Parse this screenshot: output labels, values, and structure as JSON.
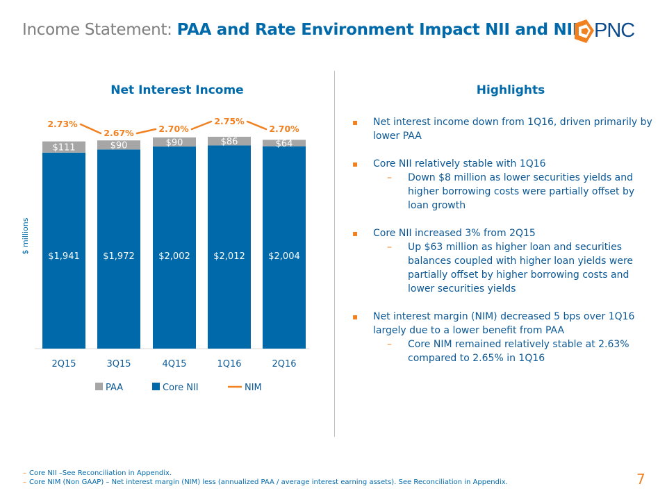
{
  "header": {
    "title_prefix": "Income Statement: ",
    "title_bold": "PAA and Rate Environment Impact NII and NIM",
    "logo_text": "PNC"
  },
  "chart_title": "Net Interest Income",
  "highlights_title": "Highlights",
  "chart_data": {
    "type": "bar",
    "stacked": true,
    "title": "Net Interest Income",
    "ylabel": "$ millions",
    "categories": [
      "2Q15",
      "3Q15",
      "4Q15",
      "1Q16",
      "2Q16"
    ],
    "series": [
      {
        "name": "Core NII",
        "color": "#0069aa",
        "values": [
          1941,
          1972,
          2002,
          2012,
          2004
        ],
        "labels": [
          "$1,941",
          "$1,972",
          "$2,002",
          "$2,012",
          "$2,004"
        ]
      },
      {
        "name": "PAA",
        "color": "#a6a6a6",
        "values": [
          111,
          90,
          90,
          86,
          64
        ],
        "labels": [
          "$111",
          "$90",
          "$90",
          "$86",
          "$64"
        ]
      }
    ],
    "line": {
      "name": "NIM",
      "color": "#f08020",
      "values": [
        2.73,
        2.67,
        2.7,
        2.75,
        2.7
      ],
      "labels": [
        "2.73%",
        "2.67%",
        "2.70%",
        "2.75%",
        "2.70%"
      ]
    },
    "legend": [
      {
        "name": "PAA",
        "kind": "box",
        "color": "#a6a6a6"
      },
      {
        "name": "Core NII",
        "kind": "box",
        "color": "#0069aa"
      },
      {
        "name": "NIM",
        "kind": "line",
        "color": "#f08020"
      }
    ],
    "legend_position": "bottom"
  },
  "highlights": [
    {
      "level": 1,
      "text": "Net interest income down from 1Q16, driven primarily by lower PAA"
    },
    {
      "level": 1,
      "text": "Core NII relatively stable with 1Q16"
    },
    {
      "level": 2,
      "text": "Down $8 million as lower securities yields and higher borrowing costs were partially offset by loan growth"
    },
    {
      "level": 1,
      "text": "Core NII increased 3% from 2Q15"
    },
    {
      "level": 2,
      "text": "Up $63 million as higher loan and securities balances coupled with higher loan yields were partially offset by higher borrowing costs and lower securities yields"
    },
    {
      "level": 1,
      "text": "Net interest margin (NIM) decreased 5 bps over 1Q16 largely due to a lower benefit from PAA"
    },
    {
      "level": 2,
      "text": "Core NIM remained relatively stable at 2.63% compared to 2.65% in 1Q16"
    }
  ],
  "dash_glyph": "–",
  "footnotes": [
    "Core NII –See Reconciliation in Appendix.",
    "Core NIM (Non GAAP) – Net interest margin (NIM) less (annualized PAA / average interest earning assets).  See Reconciliation in Appendix."
  ],
  "page_number": "7"
}
